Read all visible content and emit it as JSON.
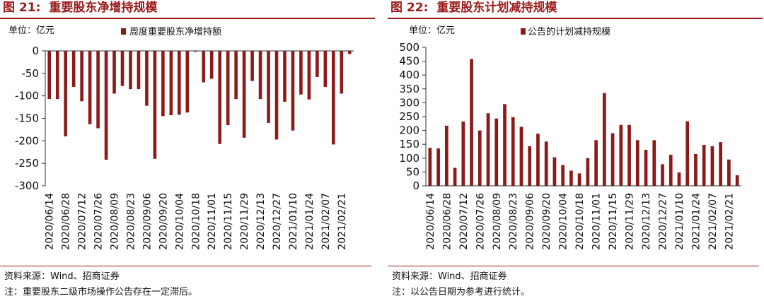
{
  "charts": [
    {
      "fig_label": "图 21:",
      "fig_title": "重要股东净增持规模",
      "source": "资料来源：Wind、招商证券",
      "note": "注：重要股东二级市场操作公告存在一定滞后。",
      "chart_data": {
        "type": "bar",
        "unit_label": "单位：亿元",
        "legend": "周度重要股东净增持额",
        "series": [
          {
            "name": "周度重要股东净增持额",
            "values": [
              -107,
              -107,
              -190,
              -80,
              -112,
              -163,
              -172,
              -242,
              -95,
              -78,
              -85,
              -85,
              -122,
              -240,
              -145,
              -143,
              -142,
              -137,
              -2,
              -70,
              -62,
              -207,
              -165,
              -107,
              -193,
              -67,
              -107,
              -160,
              -197,
              -113,
              -177,
              -97,
              -108,
              -58,
              -80,
              -208,
              -95,
              -7
            ]
          }
        ],
        "ticks": [
          "2020/06/14",
          "2020/06/28",
          "2020/07/12",
          "2020/07/26",
          "2020/08/09",
          "2020/08/23",
          "2020/09/06",
          "2020/09/20",
          "2020/10/04",
          "2020/10/18",
          "2020/11/01",
          "2020/11/15",
          "2020/11/29",
          "2020/12/13",
          "2020/12/27",
          "2021/01/10",
          "2021/01/24",
          "2021/02/07",
          "2021/02/21"
        ],
        "ylim": [
          -300,
          0
        ],
        "yticks": [
          "0",
          "-50",
          "-100",
          "-150",
          "-200",
          "-250",
          "-300"
        ],
        "color": "#8b1a1a"
      }
    },
    {
      "fig_label": "图 22:",
      "fig_title": "重要股东计划减持规模",
      "source": "资料来源：Wind、招商证券",
      "note": "注：以公告日期为参考进行统计。",
      "chart_data": {
        "type": "bar",
        "unit_label": "单位：亿元",
        "legend": "公告的计划减持规模",
        "series": [
          {
            "name": "公告的计划减持规模",
            "values": [
              137,
              135,
              217,
              65,
              232,
              458,
              200,
              262,
              243,
              295,
              248,
              213,
              143,
              188,
              160,
              103,
              75,
              55,
              45,
              100,
              165,
              335,
              190,
              220,
              220,
              165,
              130,
              165,
              78,
              112,
              48,
              233,
              115,
              148,
              143,
              158,
              95,
              38
            ]
          }
        ],
        "ticks": [
          "2020/06/14",
          "2020/06/28",
          "2020/07/12",
          "2020/07/26",
          "2020/08/09",
          "2020/08/23",
          "2020/09/06",
          "2020/09/20",
          "2020/10/04",
          "2020/10/18",
          "2020/11/01",
          "2020/11/15",
          "2020/11/29",
          "2020/12/13",
          "2020/12/27",
          "2021/01/10",
          "2021/01/24",
          "2021/02/07",
          "2021/02/21"
        ],
        "ylim": [
          0,
          500
        ],
        "yticks": [
          "500",
          "450",
          "400",
          "350",
          "300",
          "250",
          "200",
          "150",
          "100",
          "50",
          "0"
        ],
        "color": "#8b1a1a"
      }
    }
  ]
}
